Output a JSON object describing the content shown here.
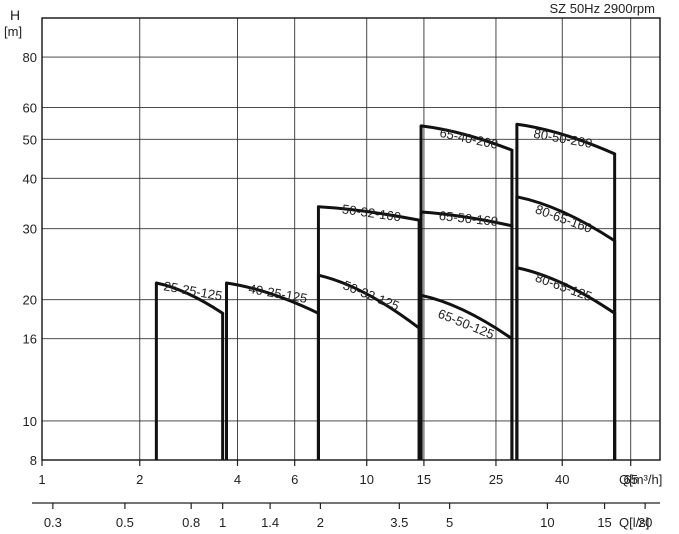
{
  "chart_data": {
    "type": "line",
    "title": "SZ 50Hz   2900rpm",
    "ylabel": "H",
    "yunit": "[m]",
    "y_scale": "log",
    "ylim": [
      8,
      100
    ],
    "y_ticks": [
      8,
      10,
      16,
      20,
      30,
      40,
      50,
      60,
      80
    ],
    "x_scale": "log",
    "xlim": [
      1,
      80
    ],
    "xlabel": "Q[m³/h]",
    "x_ticks": [
      1,
      2,
      4,
      6,
      10,
      15,
      25,
      40,
      65
    ],
    "x2label": "Q[l/s]",
    "x2_ticks": [
      0.3,
      0.5,
      0.8,
      1,
      1.4,
      2,
      3.5,
      5,
      10,
      15,
      20
    ],
    "grid": true,
    "series": [
      {
        "name": "25-25-125",
        "x": [
          2.25,
          3.6
        ],
        "y": [
          22,
          18.5
        ],
        "label_pos": [
          2.9,
          20.5
        ],
        "label_angle": 10
      },
      {
        "name": "40-25-125",
        "x": [
          3.7,
          7.1
        ],
        "y": [
          22,
          18.5
        ],
        "label_pos": [
          5.3,
          20.2
        ],
        "label_angle": 10
      },
      {
        "name": "50-32-160",
        "x": [
          7.1,
          14.5
        ],
        "y": [
          34,
          31.5
        ],
        "label_pos": [
          10.3,
          32
        ],
        "label_angle": 8
      },
      {
        "name": "50-32-125",
        "x": [
          7.1,
          14.5
        ],
        "y": [
          23,
          17
        ],
        "label_pos": [
          10.2,
          20
        ],
        "label_angle": 22
      },
      {
        "name": "65-40-200",
        "x": [
          14.7,
          28
        ],
        "y": [
          54,
          47
        ],
        "label_pos": [
          20.5,
          49
        ],
        "label_angle": 12
      },
      {
        "name": "65-50-160",
        "x": [
          14.7,
          28
        ],
        "y": [
          33,
          30.5
        ],
        "label_pos": [
          20.5,
          31
        ],
        "label_angle": 6
      },
      {
        "name": "65-50-125",
        "x": [
          14.7,
          28
        ],
        "y": [
          20.5,
          16
        ],
        "label_pos": [
          20,
          17
        ],
        "label_angle": 22
      },
      {
        "name": "80-50-200",
        "x": [
          29,
          58
        ],
        "y": [
          54.5,
          46
        ],
        "label_pos": [
          40,
          49
        ],
        "label_angle": 10
      },
      {
        "name": "80-65-160",
        "x": [
          29,
          58
        ],
        "y": [
          36,
          28
        ],
        "label_pos": [
          40,
          31
        ],
        "label_angle": 20
      },
      {
        "name": "80-65-125",
        "x": [
          29,
          58
        ],
        "y": [
          24,
          18.5
        ],
        "label_pos": [
          40,
          21
        ],
        "label_angle": 20
      }
    ]
  }
}
